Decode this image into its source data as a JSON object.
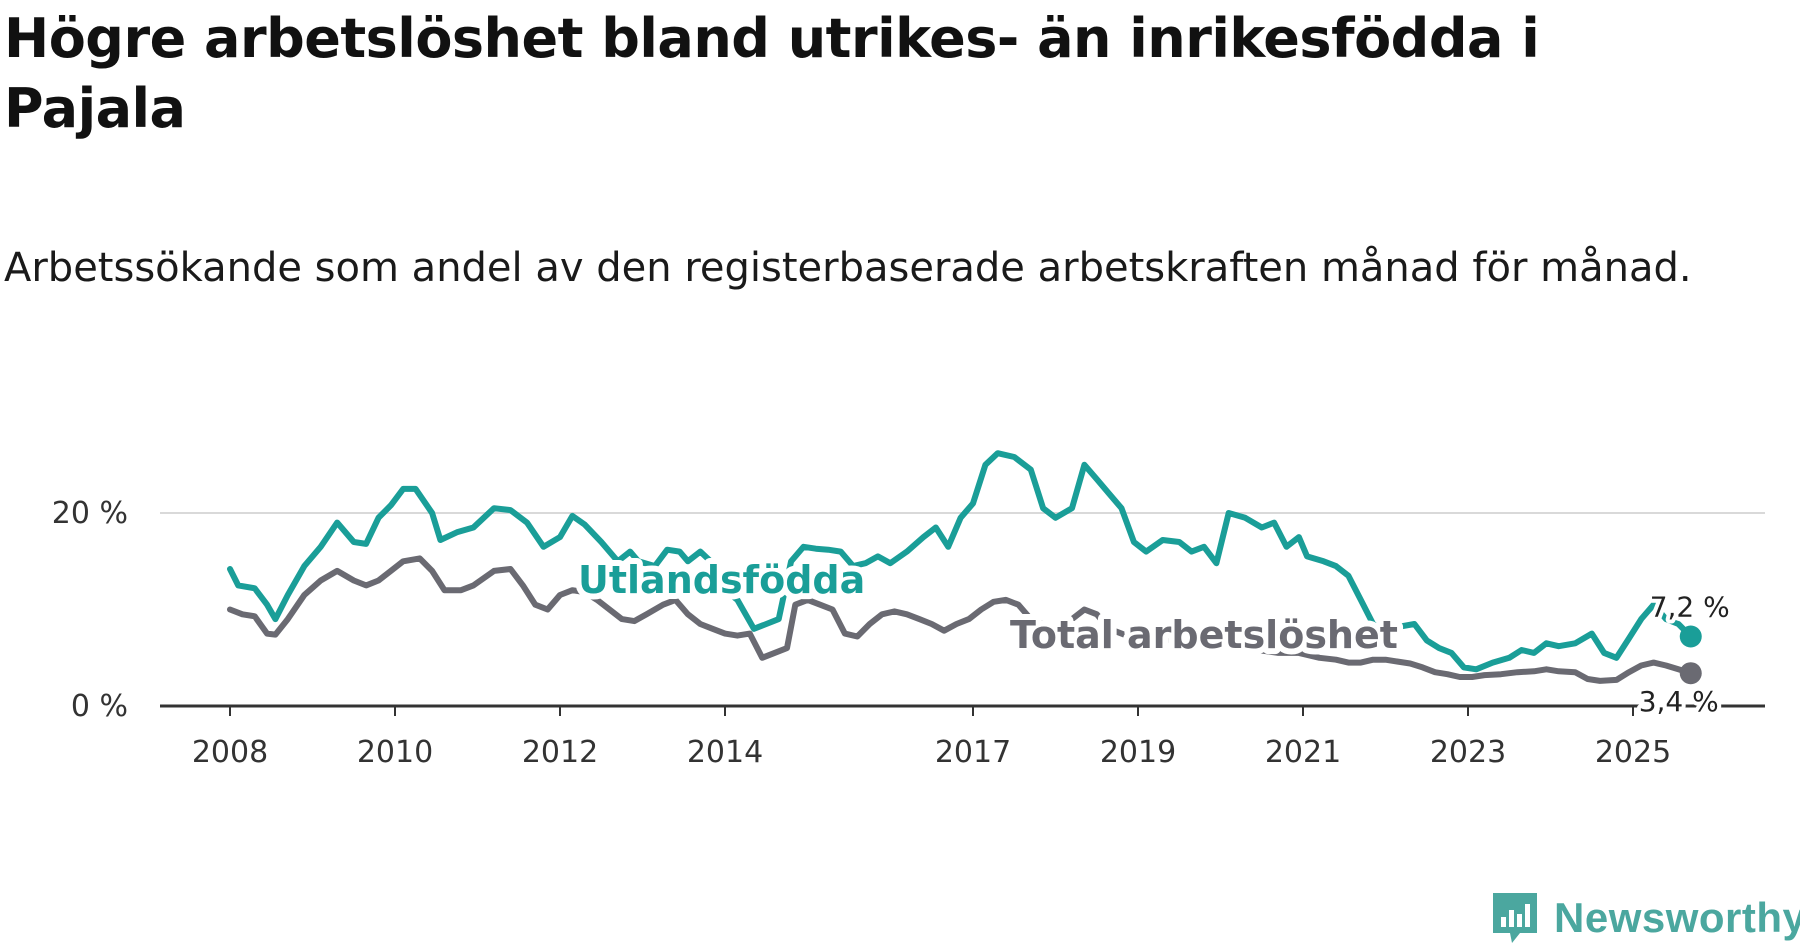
{
  "title": "Högre arbetslöshet bland utrikes- än inrikesfödda i Pajala",
  "subtitle": "Arbetssökande som andel av den registerbaserade arbetskraften månad för månad.",
  "brand": {
    "name": "Newsworthy",
    "icon": "newsworthy-logo-icon",
    "color": "#4ba79f"
  },
  "chart_data": {
    "type": "line",
    "title": "Högre arbetslöshet bland utrikes- än inrikesfödda i Pajala",
    "subtitle": "Arbetssökande som andel av den registerbaserade arbetskraften månad för månad.",
    "xlabel": "",
    "ylabel": "",
    "xlim": [
      2008,
      2026
    ],
    "ylim": [
      0,
      25
    ],
    "x_ticks": [
      2008,
      2010,
      2012,
      2014,
      2017,
      2019,
      2021,
      2023,
      2025
    ],
    "x_tick_labels": [
      "2008",
      "2010",
      "2012",
      "2014",
      "2017",
      "2019",
      "2021",
      "2023",
      "2025"
    ],
    "y_ticks": [
      0,
      20
    ],
    "y_tick_labels": [
      "0 %",
      "20 %"
    ],
    "grid": true,
    "series": [
      {
        "name": "Utlandsfödda",
        "color": "#1a9e98",
        "end_label": "7,2 %",
        "points": [
          [
            2008.0,
            14.2
          ],
          [
            2008.1,
            12.5
          ],
          [
            2008.3,
            12.2
          ],
          [
            2008.45,
            10.5
          ],
          [
            2008.55,
            9.0
          ],
          [
            2008.7,
            11.5
          ],
          [
            2008.9,
            14.5
          ],
          [
            2009.1,
            16.5
          ],
          [
            2009.3,
            19.0
          ],
          [
            2009.5,
            17.0
          ],
          [
            2009.65,
            16.8
          ],
          [
            2009.8,
            19.5
          ],
          [
            2009.95,
            20.8
          ],
          [
            2010.1,
            22.5
          ],
          [
            2010.25,
            22.5
          ],
          [
            2010.45,
            20.0
          ],
          [
            2010.55,
            17.2
          ],
          [
            2010.75,
            18.0
          ],
          [
            2010.95,
            18.5
          ],
          [
            2011.2,
            20.5
          ],
          [
            2011.4,
            20.3
          ],
          [
            2011.6,
            19.0
          ],
          [
            2011.8,
            16.5
          ],
          [
            2012.0,
            17.5
          ],
          [
            2012.15,
            19.7
          ],
          [
            2012.3,
            18.8
          ],
          [
            2012.5,
            17.0
          ],
          [
            2012.7,
            15.0
          ],
          [
            2012.85,
            16.0
          ],
          [
            2012.95,
            15.0
          ],
          [
            2013.15,
            14.5
          ],
          [
            2013.3,
            16.2
          ],
          [
            2013.45,
            16.0
          ],
          [
            2013.55,
            15.0
          ],
          [
            2013.7,
            16.0
          ],
          [
            2013.85,
            14.8
          ],
          [
            2014.0,
            12.0
          ],
          [
            2014.15,
            11.0
          ],
          [
            2014.35,
            8.0
          ],
          [
            2014.5,
            8.5
          ],
          [
            2014.65,
            9.0
          ],
          [
            2014.8,
            15.0
          ],
          [
            2014.95,
            16.5
          ],
          [
            2015.1,
            16.3
          ],
          [
            2015.25,
            16.2
          ],
          [
            2015.4,
            16.0
          ],
          [
            2015.55,
            14.5
          ],
          [
            2015.7,
            14.8
          ],
          [
            2015.85,
            15.5
          ],
          [
            2016.0,
            14.8
          ],
          [
            2016.2,
            16.0
          ],
          [
            2016.4,
            17.5
          ],
          [
            2016.55,
            18.5
          ],
          [
            2016.7,
            16.5
          ],
          [
            2016.85,
            19.5
          ],
          [
            2017.0,
            21.0
          ],
          [
            2017.15,
            25.0
          ],
          [
            2017.3,
            26.2
          ],
          [
            2017.5,
            25.8
          ],
          [
            2017.7,
            24.5
          ],
          [
            2017.85,
            20.5
          ],
          [
            2018.0,
            19.5
          ],
          [
            2018.2,
            20.5
          ],
          [
            2018.35,
            25.0
          ],
          [
            2018.5,
            23.5
          ],
          [
            2018.65,
            22.0
          ],
          [
            2018.8,
            20.5
          ],
          [
            2018.95,
            17.0
          ],
          [
            2019.1,
            16.0
          ],
          [
            2019.3,
            17.2
          ],
          [
            2019.5,
            17.0
          ],
          [
            2019.65,
            16.0
          ],
          [
            2019.8,
            16.5
          ],
          [
            2019.95,
            14.8
          ],
          [
            2020.1,
            20.0
          ],
          [
            2020.3,
            19.5
          ],
          [
            2020.5,
            18.5
          ],
          [
            2020.65,
            19.0
          ],
          [
            2020.8,
            16.5
          ],
          [
            2020.95,
            17.5
          ],
          [
            2021.05,
            15.5
          ],
          [
            2021.25,
            15.0
          ],
          [
            2021.4,
            14.5
          ],
          [
            2021.55,
            13.5
          ],
          [
            2021.7,
            11.0
          ],
          [
            2021.85,
            8.5
          ],
          [
            2022.0,
            7.8
          ],
          [
            2022.15,
            8.2
          ],
          [
            2022.35,
            8.5
          ],
          [
            2022.5,
            6.8
          ],
          [
            2022.65,
            6.0
          ],
          [
            2022.8,
            5.5
          ],
          [
            2022.95,
            4.0
          ],
          [
            2023.1,
            3.8
          ],
          [
            2023.3,
            4.5
          ],
          [
            2023.5,
            5.0
          ],
          [
            2023.65,
            5.8
          ],
          [
            2023.8,
            5.5
          ],
          [
            2023.95,
            6.5
          ],
          [
            2024.1,
            6.2
          ],
          [
            2024.3,
            6.5
          ],
          [
            2024.5,
            7.5
          ],
          [
            2024.65,
            5.5
          ],
          [
            2024.8,
            5.0
          ],
          [
            2024.95,
            7.0
          ],
          [
            2025.1,
            9.0
          ],
          [
            2025.25,
            10.5
          ],
          [
            2025.4,
            9.0
          ],
          [
            2025.55,
            8.5
          ],
          [
            2025.7,
            7.2
          ]
        ]
      },
      {
        "name": "Total arbetslöshet",
        "color": "#6a6a72",
        "end_label": "3,4 %",
        "points": [
          [
            2008.0,
            10.0
          ],
          [
            2008.15,
            9.5
          ],
          [
            2008.3,
            9.3
          ],
          [
            2008.45,
            7.5
          ],
          [
            2008.55,
            7.4
          ],
          [
            2008.7,
            9.0
          ],
          [
            2008.9,
            11.5
          ],
          [
            2009.1,
            13.0
          ],
          [
            2009.3,
            14.0
          ],
          [
            2009.5,
            13.0
          ],
          [
            2009.65,
            12.5
          ],
          [
            2009.8,
            13.0
          ],
          [
            2009.95,
            14.0
          ],
          [
            2010.1,
            15.0
          ],
          [
            2010.3,
            15.3
          ],
          [
            2010.45,
            14.0
          ],
          [
            2010.6,
            12.0
          ],
          [
            2010.8,
            12.0
          ],
          [
            2010.95,
            12.5
          ],
          [
            2011.2,
            14.0
          ],
          [
            2011.4,
            14.2
          ],
          [
            2011.55,
            12.5
          ],
          [
            2011.7,
            10.5
          ],
          [
            2011.85,
            10.0
          ],
          [
            2012.0,
            11.5
          ],
          [
            2012.15,
            12.0
          ],
          [
            2012.3,
            11.8
          ],
          [
            2012.45,
            11.0
          ],
          [
            2012.6,
            10.0
          ],
          [
            2012.75,
            9.0
          ],
          [
            2012.9,
            8.8
          ],
          [
            2013.05,
            9.5
          ],
          [
            2013.25,
            10.5
          ],
          [
            2013.4,
            11.0
          ],
          [
            2013.55,
            9.5
          ],
          [
            2013.7,
            8.5
          ],
          [
            2013.85,
            8.0
          ],
          [
            2014.0,
            7.5
          ],
          [
            2014.15,
            7.3
          ],
          [
            2014.3,
            7.5
          ],
          [
            2014.45,
            5.0
          ],
          [
            2014.6,
            5.5
          ],
          [
            2014.75,
            6.0
          ],
          [
            2014.85,
            10.5
          ],
          [
            2015.0,
            11.0
          ],
          [
            2015.15,
            10.5
          ],
          [
            2015.3,
            10.0
          ],
          [
            2015.45,
            7.5
          ],
          [
            2015.6,
            7.2
          ],
          [
            2015.75,
            8.5
          ],
          [
            2015.9,
            9.5
          ],
          [
            2016.05,
            9.8
          ],
          [
            2016.2,
            9.5
          ],
          [
            2016.35,
            9.0
          ],
          [
            2016.5,
            8.5
          ],
          [
            2016.65,
            7.8
          ],
          [
            2016.8,
            8.5
          ],
          [
            2016.95,
            9.0
          ],
          [
            2017.1,
            10.0
          ],
          [
            2017.25,
            10.8
          ],
          [
            2017.4,
            11.0
          ],
          [
            2017.55,
            10.5
          ],
          [
            2017.7,
            9.0
          ],
          [
            2017.85,
            8.5
          ],
          [
            2018.0,
            8.0
          ],
          [
            2018.2,
            9.0
          ],
          [
            2018.35,
            10.0
          ],
          [
            2018.5,
            9.5
          ],
          [
            2018.65,
            8.0
          ],
          [
            2018.8,
            7.5
          ],
          [
            2018.95,
            7.0
          ],
          [
            2019.2,
            7.0
          ],
          [
            2019.45,
            6.8
          ],
          [
            2019.7,
            6.5
          ],
          [
            2019.95,
            6.2
          ],
          [
            2020.2,
            6.0
          ],
          [
            2020.45,
            5.8
          ],
          [
            2020.7,
            5.5
          ],
          [
            2020.95,
            5.5
          ],
          [
            2021.2,
            5.0
          ],
          [
            2021.4,
            4.8
          ],
          [
            2021.55,
            4.5
          ],
          [
            2021.7,
            4.5
          ],
          [
            2021.85,
            4.8
          ],
          [
            2022.0,
            4.8
          ],
          [
            2022.15,
            4.6
          ],
          [
            2022.3,
            4.4
          ],
          [
            2022.45,
            4.0
          ],
          [
            2022.6,
            3.5
          ],
          [
            2022.75,
            3.3
          ],
          [
            2022.9,
            3.0
          ],
          [
            2023.05,
            3.0
          ],
          [
            2023.2,
            3.2
          ],
          [
            2023.4,
            3.3
          ],
          [
            2023.6,
            3.5
          ],
          [
            2023.8,
            3.6
          ],
          [
            2023.95,
            3.8
          ],
          [
            2024.1,
            3.6
          ],
          [
            2024.3,
            3.5
          ],
          [
            2024.45,
            2.8
          ],
          [
            2024.6,
            2.6
          ],
          [
            2024.8,
            2.7
          ],
          [
            2024.95,
            3.5
          ],
          [
            2025.1,
            4.2
          ],
          [
            2025.25,
            4.5
          ],
          [
            2025.4,
            4.2
          ],
          [
            2025.55,
            3.8
          ],
          [
            2025.7,
            3.4
          ]
        ]
      }
    ]
  }
}
